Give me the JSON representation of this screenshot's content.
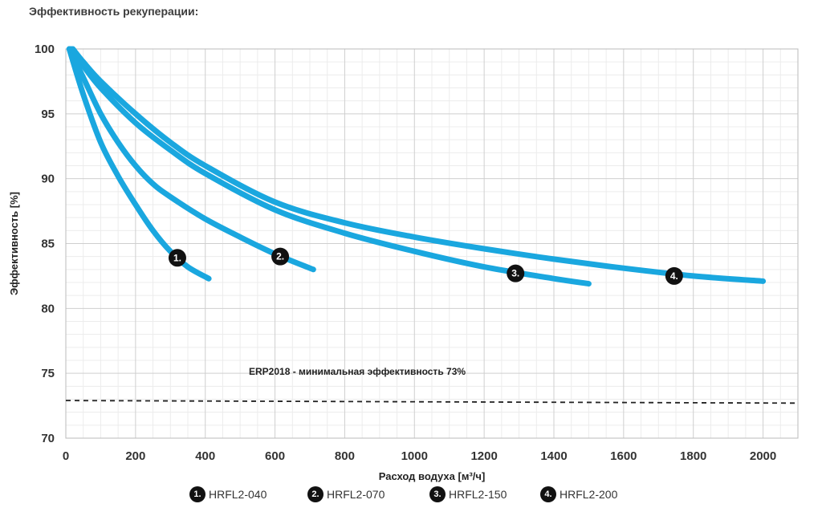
{
  "page": {
    "title": "Эффективность рекуперации:"
  },
  "chart_data": {
    "type": "line",
    "title": "Эффективность рекуперации:",
    "xlabel": "Расход водуха [м³/ч]",
    "ylabel": "Эффективность [%]",
    "xlim": [
      0,
      2100
    ],
    "ylim": [
      70,
      100
    ],
    "x_ticks": [
      "0",
      "200",
      "400",
      "600",
      "800",
      "1000",
      "1200",
      "1400",
      "1600",
      "1800",
      "2000"
    ],
    "y_ticks": [
      "70",
      "75",
      "80",
      "85",
      "90",
      "95",
      "100"
    ],
    "grid": true,
    "legend_position": "bottom",
    "series_color": "#1aa7df",
    "series": [
      {
        "name": "HRFL2-040",
        "marker": "1.",
        "marker_at": [
          320,
          83.9
        ],
        "x": [
          10,
          50,
          100,
          150,
          200,
          250,
          300,
          350,
          410
        ],
        "y": [
          100,
          96.5,
          92.8,
          90.2,
          88.0,
          86.0,
          84.4,
          83.2,
          82.3
        ]
      },
      {
        "name": "HRFL2-070",
        "marker": "2.",
        "marker_at": [
          615,
          84.0
        ],
        "x": [
          10,
          50,
          100,
          150,
          200,
          250,
          300,
          400,
          500,
          600,
          710
        ],
        "y": [
          100,
          97.8,
          95.0,
          92.8,
          91.0,
          89.6,
          88.6,
          86.9,
          85.5,
          84.2,
          83.0
        ]
      },
      {
        "name": "HRFL2-150",
        "marker": "3.",
        "marker_at": [
          1290,
          82.7
        ],
        "x": [
          15,
          50,
          100,
          200,
          300,
          400,
          600,
          800,
          1000,
          1200,
          1400,
          1500
        ],
        "y": [
          100,
          98.7,
          97.0,
          94.3,
          92.2,
          90.4,
          87.6,
          85.8,
          84.4,
          83.2,
          82.3,
          81.9
        ]
      },
      {
        "name": "HRFL2-200",
        "marker": "4.",
        "marker_at": [
          1745,
          82.5
        ],
        "x": [
          20,
          50,
          100,
          200,
          300,
          400,
          600,
          800,
          1000,
          1200,
          1400,
          1600,
          1800,
          2000
        ],
        "y": [
          100,
          99.0,
          97.5,
          95.0,
          92.8,
          91.0,
          88.2,
          86.6,
          85.5,
          84.6,
          83.8,
          83.1,
          82.5,
          82.1
        ]
      }
    ],
    "reference_line": {
      "label": "ERP2018 - минимальная эффективность 73%",
      "y_start": 72.9,
      "y_end": 72.7,
      "style": "dashed",
      "color": "#222222"
    }
  }
}
